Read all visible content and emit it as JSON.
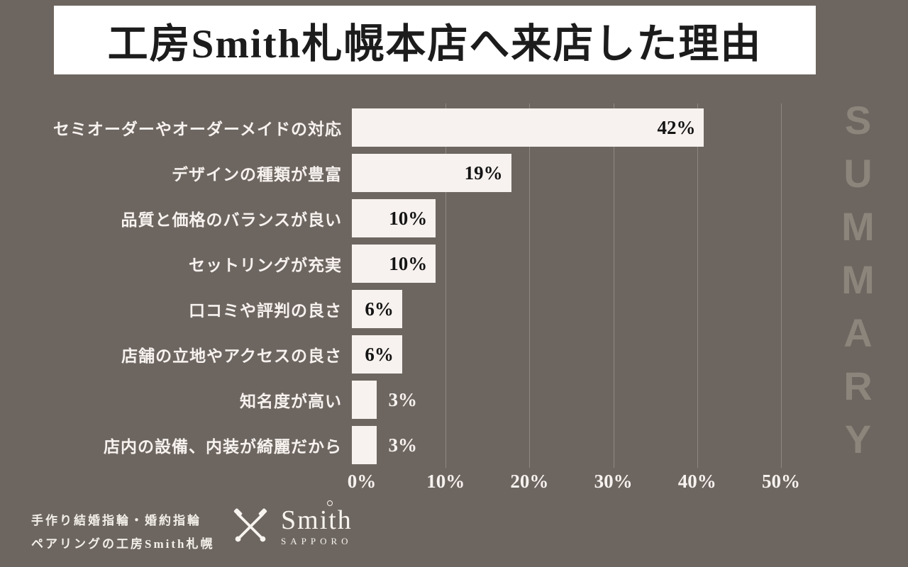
{
  "title": "工房Smith札幌本店へ来店した理由",
  "summary_label": "SUMMARY",
  "footer": {
    "line1": "手作り結婚指輪・婚約指輪",
    "line2": "ペアリングの工房Smith札幌",
    "logo_text": "Smith",
    "logo_sub": "SAPPORO"
  },
  "colors": {
    "background": "#6d6660",
    "bar": "#f7f2ef",
    "title_bg": "#ffffff",
    "title_text": "#1c1c1c",
    "summary_text": "#8b857c",
    "axis_text": "#f7f2ef",
    "value_inside_text": "#141414"
  },
  "chart_data": {
    "type": "bar",
    "orientation": "horizontal",
    "title": "工房Smith札幌本店へ来店した理由",
    "categories": [
      "セミオーダーやオーダーメイドの対応",
      "デザインの種類が豊富",
      "品質と価格のバランスが良い",
      "セットリングが充実",
      "口コミや評判の良さ",
      "店舗の立地やアクセスの良さ",
      "知名度が高い",
      "店内の設備、内装が綺麗だから"
    ],
    "values": [
      42,
      19,
      10,
      10,
      6,
      6,
      3,
      3
    ],
    "value_labels": [
      "42%",
      "19%",
      "10%",
      "10%",
      "6%",
      "6%",
      "3%",
      "3%"
    ],
    "x_ticks": [
      "0%",
      "10%",
      "20%",
      "30%",
      "40%",
      "50%"
    ],
    "xlim": [
      0,
      50
    ],
    "grid": true,
    "legend": false,
    "bar_color": "#f7f2ef",
    "background_color": "#6d6660"
  }
}
